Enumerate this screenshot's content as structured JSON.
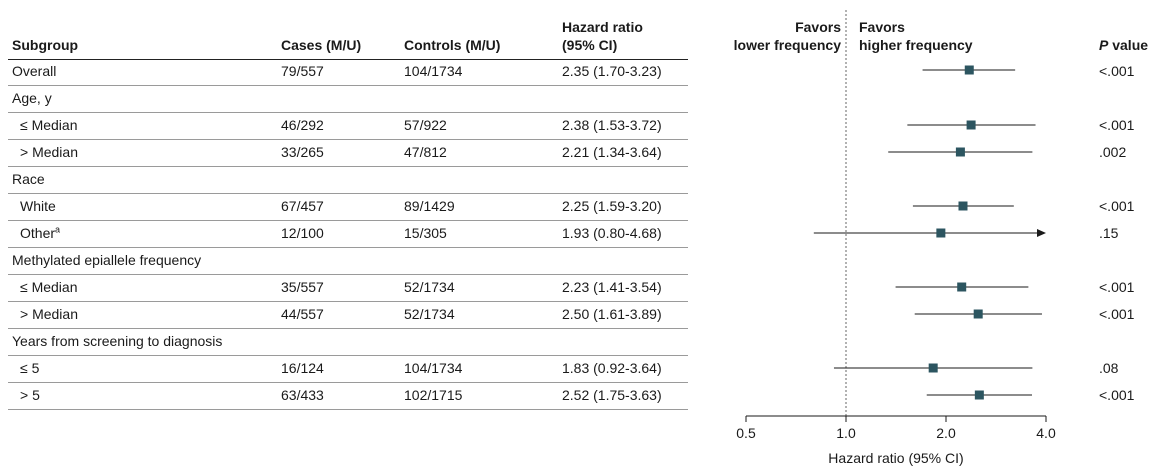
{
  "headers": {
    "subgroup": "Subgroup",
    "cases": "Cases (M/U)",
    "controls": "Controls (M/U)",
    "hr_line1": "Hazard ratio",
    "hr_line2": "(95% CI)",
    "favors_lower_1": "Favors",
    "favors_lower_2": "lower frequency",
    "favors_higher_1": "Favors",
    "favors_higher_2": "higher frequency",
    "p_italic": "P",
    "p_rest": " value"
  },
  "rows": [
    {
      "label": "Overall",
      "cases": "79/557",
      "controls": "104/1734",
      "hr": "2.35 (1.70-3.23)",
      "p": "<.001"
    },
    {
      "label": "Age, y",
      "group": true
    },
    {
      "label": "≤ Median",
      "cases": "46/292",
      "controls": "57/922",
      "hr": "2.38 (1.53-3.72)",
      "p": "<.001"
    },
    {
      "label": "> Median",
      "cases": "33/265",
      "controls": "47/812",
      "hr": "2.21 (1.34-3.64)",
      "p": ".002"
    },
    {
      "label": "Race",
      "group": true
    },
    {
      "label": "White",
      "cases": "67/457",
      "controls": "89/1429",
      "hr": "2.25 (1.59-3.20)",
      "p": "<.001"
    },
    {
      "label": "Other",
      "sup": "a",
      "cases": "12/100",
      "controls": "15/305",
      "hr": "1.93 (0.80-4.68)",
      "p": ".15"
    },
    {
      "label": "Methylated epiallele frequency",
      "group": true
    },
    {
      "label": "≤ Median",
      "cases": "35/557",
      "controls": "52/1734",
      "hr": "2.23 (1.41-3.54)",
      "p": "<.001"
    },
    {
      "label": "> Median",
      "cases": "44/557",
      "controls": "52/1734",
      "hr": "2.50 (1.61-3.89)",
      "p": "<.001"
    },
    {
      "label": "Years from screening to diagnosis",
      "group": true
    },
    {
      "label": "≤ 5",
      "cases": "16/124",
      "controls": "104/1734",
      "hr": "1.83 (0.92-3.64)",
      "p": ".08"
    },
    {
      "label": "> 5",
      "cases": "63/433",
      "controls": "102/1715",
      "hr": "2.52 (1.75-3.63)",
      "p": "<.001"
    }
  ],
  "chart_data": {
    "type": "forest",
    "xscale": "log",
    "xlim": [
      0.5,
      4.0
    ],
    "xticks": [
      "0.5",
      "1.0",
      "2.0",
      "4.0"
    ],
    "reference_line": 1.0,
    "xlabel": "Hazard ratio (95% CI)",
    "series": [
      {
        "name": "Overall",
        "estimate": 2.35,
        "lower": 1.7,
        "upper": 3.23
      },
      {
        "name": "Age ≤ Median",
        "estimate": 2.38,
        "lower": 1.53,
        "upper": 3.72
      },
      {
        "name": "Age > Median",
        "estimate": 2.21,
        "lower": 1.34,
        "upper": 3.64
      },
      {
        "name": "White",
        "estimate": 2.25,
        "lower": 1.59,
        "upper": 3.2
      },
      {
        "name": "Other",
        "estimate": 1.93,
        "lower": 0.8,
        "upper": 4.68
      },
      {
        "name": "Methylated ≤ Median",
        "estimate": 2.23,
        "lower": 1.41,
        "upper": 3.54
      },
      {
        "name": "Methylated > Median",
        "estimate": 2.5,
        "lower": 1.61,
        "upper": 3.89
      },
      {
        "name": "Years ≤ 5",
        "estimate": 1.83,
        "lower": 0.92,
        "upper": 3.64
      },
      {
        "name": "Years > 5",
        "estimate": 2.52,
        "lower": 1.75,
        "upper": 3.63
      }
    ],
    "colors": {
      "marker": "#2c5560",
      "line": "#1a1a1a",
      "reference": "#666666"
    }
  }
}
